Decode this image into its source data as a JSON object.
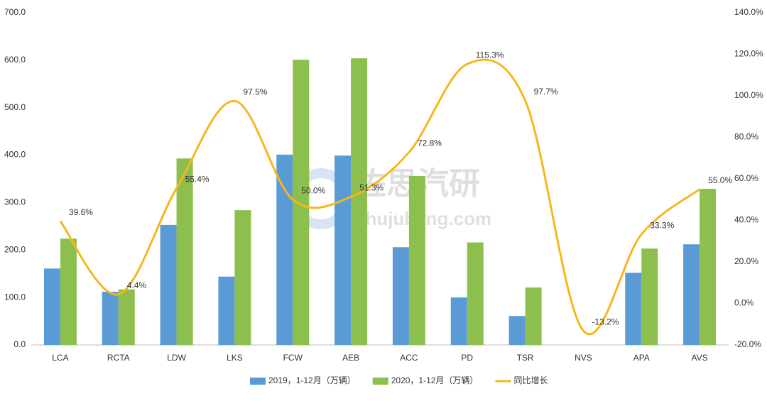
{
  "chart_data": {
    "type": "bar-line",
    "categories": [
      "LCA",
      "RCTA",
      "LDW",
      "LKS",
      "FCW",
      "AEB",
      "ACC",
      "PD",
      "TSR",
      "NVS",
      "APA",
      "AVS"
    ],
    "series": [
      {
        "name": "2019，1-12月（万辆）",
        "color": "#5b9bd5",
        "type": "bar",
        "values": [
          161,
          112,
          253,
          144,
          401,
          399,
          206,
          100,
          61,
          null,
          152,
          212
        ]
      },
      {
        "name": "2020，1-12月（万辆）",
        "color": "#8dbf4e",
        "type": "bar",
        "values": [
          224,
          117,
          393,
          284,
          601,
          604,
          356,
          216,
          121,
          null,
          203,
          329
        ]
      },
      {
        "name": "同比增长",
        "color": "#f5b81c",
        "type": "line",
        "axis": "y2",
        "values": [
          39.6,
          4.4,
          55.4,
          97.5,
          50.0,
          51.3,
          72.8,
          115.3,
          97.7,
          -13.2,
          33.3,
          55.0
        ],
        "value_labels": [
          "39.6%",
          "4.4%",
          "55.4%",
          "97.5%",
          "50.0%",
          "51.3%",
          "72.8%",
          "115.3%",
          "97.7%",
          "-13.2%",
          "33.3%",
          "55.0%"
        ]
      }
    ],
    "ylim": [
      0,
      700
    ],
    "yticks": [
      {
        "value": 0,
        "label": "0.0"
      },
      {
        "value": 100,
        "label": "100.0"
      },
      {
        "value": 200,
        "label": "200.0"
      },
      {
        "value": 300,
        "label": "300.0"
      },
      {
        "value": 400,
        "label": "400.0"
      },
      {
        "value": 500,
        "label": "500.0"
      },
      {
        "value": 600,
        "label": "600.0"
      },
      {
        "value": 700,
        "label": "700.0"
      }
    ],
    "y2lim": [
      -20,
      140
    ],
    "y2ticks": [
      {
        "value": -20,
        "label": "-20.0%"
      },
      {
        "value": 0,
        "label": "0.0%"
      },
      {
        "value": 20,
        "label": "20.0%"
      },
      {
        "value": 40,
        "label": "40.0%"
      },
      {
        "value": 60,
        "label": "60.0%"
      },
      {
        "value": 80,
        "label": "80.0%"
      },
      {
        "value": 100,
        "label": "100.0%"
      },
      {
        "value": 120,
        "label": "120.0%"
      },
      {
        "value": 140,
        "label": "140.0%"
      }
    ],
    "grid": false,
    "legend": "bottom"
  },
  "watermark": {
    "title": "佐思汽研",
    "url": "shujubang.com"
  }
}
